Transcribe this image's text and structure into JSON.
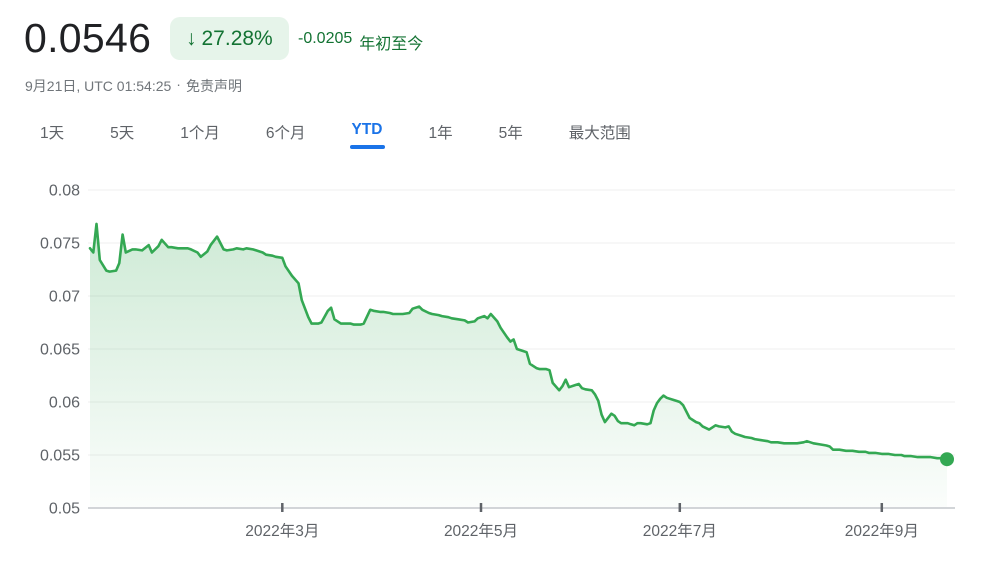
{
  "header": {
    "price": "0.0546",
    "change_badge": {
      "arrow": "↓",
      "percent": "27.28%"
    },
    "change_absolute": "-0.0205",
    "change_period_label": "年初至今",
    "timestamp": "9月21日, UTC 01:54:25",
    "separator": "·",
    "disclaimer": "免责声明"
  },
  "range_tabs": {
    "items": [
      {
        "key": "1d",
        "label": "1天",
        "active": false
      },
      {
        "key": "5d",
        "label": "5天",
        "active": false
      },
      {
        "key": "1m",
        "label": "1个月",
        "active": false
      },
      {
        "key": "6m",
        "label": "6个月",
        "active": false
      },
      {
        "key": "ytd",
        "label": "YTD",
        "active": true
      },
      {
        "key": "1y",
        "label": "1年",
        "active": false
      },
      {
        "key": "5y",
        "label": "5年",
        "active": false
      },
      {
        "key": "max",
        "label": "最大范围",
        "active": false
      }
    ]
  },
  "colors": {
    "line_green": "#34a853",
    "dark_green": "#137333",
    "badge_bg": "#e6f4ea",
    "active_blue": "#1a73e8",
    "grid": "#efefef",
    "axis": "#c4c7cc",
    "tick": "#5f6368",
    "label_gray": "#5f6368"
  },
  "chart_data": {
    "type": "area",
    "x_unit": "day_of_year_2022",
    "x_range": [
      1,
      264
    ],
    "y_range": [
      0.05,
      0.08
    ],
    "yticks": [
      0.05,
      0.055,
      0.06,
      0.065,
      0.07,
      0.075,
      0.08
    ],
    "ytick_labels": [
      "0.05",
      "0.055",
      "0.06",
      "0.065",
      "0.07",
      "0.075",
      "0.08"
    ],
    "xticks": [
      {
        "day": 60,
        "label": "2022年3月"
      },
      {
        "day": 121,
        "label": "2022年5月"
      },
      {
        "day": 182,
        "label": "2022年7月"
      },
      {
        "day": 244,
        "label": "2022年9月"
      }
    ],
    "grid": true,
    "legend": "none",
    "last_point": {
      "day": 264,
      "value": 0.0546
    },
    "points": [
      [
        1,
        0.0745
      ],
      [
        2,
        0.0741
      ],
      [
        3,
        0.0768
      ],
      [
        4,
        0.0734
      ],
      [
        6,
        0.0724
      ],
      [
        7,
        0.0723
      ],
      [
        9,
        0.0724
      ],
      [
        10,
        0.0731
      ],
      [
        11,
        0.0758
      ],
      [
        12,
        0.0741
      ],
      [
        14,
        0.0744
      ],
      [
        15,
        0.0744
      ],
      [
        17,
        0.0743
      ],
      [
        19,
        0.0748
      ],
      [
        20,
        0.0741
      ],
      [
        22,
        0.0747
      ],
      [
        23,
        0.0753
      ],
      [
        25,
        0.0746
      ],
      [
        26,
        0.0746
      ],
      [
        28,
        0.0745
      ],
      [
        29,
        0.0745
      ],
      [
        31,
        0.0745
      ],
      [
        32,
        0.0744
      ],
      [
        34,
        0.0741
      ],
      [
        35,
        0.0737
      ],
      [
        37,
        0.0742
      ],
      [
        38,
        0.0748
      ],
      [
        40,
        0.0756
      ],
      [
        42,
        0.0744
      ],
      [
        43,
        0.0743
      ],
      [
        45,
        0.0744
      ],
      [
        46,
        0.0745
      ],
      [
        48,
        0.0744
      ],
      [
        49,
        0.0745
      ],
      [
        51,
        0.0744
      ],
      [
        52,
        0.0743
      ],
      [
        54,
        0.0741
      ],
      [
        55,
        0.0739
      ],
      [
        57,
        0.0738
      ],
      [
        58,
        0.0737
      ],
      [
        60,
        0.0736
      ],
      [
        61,
        0.0728
      ],
      [
        63,
        0.0719
      ],
      [
        65,
        0.0712
      ],
      [
        66,
        0.0696
      ],
      [
        68,
        0.068
      ],
      [
        69,
        0.0674
      ],
      [
        71,
        0.0674
      ],
      [
        72,
        0.0675
      ],
      [
        74,
        0.0686
      ],
      [
        75,
        0.0689
      ],
      [
        76,
        0.0678
      ],
      [
        78,
        0.0674
      ],
      [
        79,
        0.0674
      ],
      [
        81,
        0.0674
      ],
      [
        82,
        0.0673
      ],
      [
        84,
        0.0673
      ],
      [
        85,
        0.0674
      ],
      [
        87,
        0.0687
      ],
      [
        88,
        0.0686
      ],
      [
        90,
        0.0685
      ],
      [
        91,
        0.0685
      ],
      [
        93,
        0.0684
      ],
      [
        94,
        0.0683
      ],
      [
        96,
        0.0683
      ],
      [
        97,
        0.0683
      ],
      [
        99,
        0.0684
      ],
      [
        100,
        0.0688
      ],
      [
        102,
        0.069
      ],
      [
        103,
        0.0687
      ],
      [
        105,
        0.0684
      ],
      [
        106,
        0.0683
      ],
      [
        108,
        0.0682
      ],
      [
        109,
        0.0681
      ],
      [
        111,
        0.068
      ],
      [
        112,
        0.0679
      ],
      [
        114,
        0.0678
      ],
      [
        116,
        0.0677
      ],
      [
        117,
        0.0675
      ],
      [
        119,
        0.0676
      ],
      [
        120,
        0.0679
      ],
      [
        122,
        0.0681
      ],
      [
        123,
        0.0679
      ],
      [
        124,
        0.0683
      ],
      [
        126,
        0.0676
      ],
      [
        127,
        0.067
      ],
      [
        129,
        0.0661
      ],
      [
        130,
        0.0657
      ],
      [
        131,
        0.0659
      ],
      [
        132,
        0.065
      ],
      [
        134,
        0.0648
      ],
      [
        135,
        0.0647
      ],
      [
        136,
        0.0636
      ],
      [
        138,
        0.0632
      ],
      [
        139,
        0.0631
      ],
      [
        141,
        0.0631
      ],
      [
        142,
        0.063
      ],
      [
        143,
        0.0618
      ],
      [
        145,
        0.0611
      ],
      [
        146,
        0.0615
      ],
      [
        147,
        0.0621
      ],
      [
        148,
        0.0614
      ],
      [
        150,
        0.0616
      ],
      [
        151,
        0.0617
      ],
      [
        152,
        0.0613
      ],
      [
        153,
        0.0612
      ],
      [
        155,
        0.0611
      ],
      [
        156,
        0.0607
      ],
      [
        157,
        0.0601
      ],
      [
        158,
        0.0588
      ],
      [
        159,
        0.0581
      ],
      [
        160,
        0.0585
      ],
      [
        161,
        0.0589
      ],
      [
        162,
        0.0587
      ],
      [
        163,
        0.0582
      ],
      [
        164,
        0.058
      ],
      [
        166,
        0.058
      ],
      [
        167,
        0.0579
      ],
      [
        168,
        0.0578
      ],
      [
        169,
        0.058
      ],
      [
        170,
        0.058
      ],
      [
        172,
        0.0579
      ],
      [
        173,
        0.058
      ],
      [
        174,
        0.0592
      ],
      [
        175,
        0.0599
      ],
      [
        176,
        0.0603
      ],
      [
        177,
        0.0606
      ],
      [
        178,
        0.0604
      ],
      [
        180,
        0.0602
      ],
      [
        181,
        0.0601
      ],
      [
        182,
        0.06
      ],
      [
        183,
        0.0597
      ],
      [
        185,
        0.0585
      ],
      [
        186,
        0.0583
      ],
      [
        187,
        0.0581
      ],
      [
        188,
        0.058
      ],
      [
        189,
        0.0577
      ],
      [
        191,
        0.0574
      ],
      [
        192,
        0.0576
      ],
      [
        193,
        0.0578
      ],
      [
        194,
        0.0577
      ],
      [
        196,
        0.0576
      ],
      [
        197,
        0.0577
      ],
      [
        198,
        0.0572
      ],
      [
        199,
        0.057
      ],
      [
        201,
        0.0568
      ],
      [
        202,
        0.0567
      ],
      [
        204,
        0.0566
      ],
      [
        205,
        0.0565
      ],
      [
        207,
        0.0564
      ],
      [
        209,
        0.0563
      ],
      [
        210,
        0.0562
      ],
      [
        212,
        0.0562
      ],
      [
        214,
        0.0561
      ],
      [
        216,
        0.0561
      ],
      [
        218,
        0.0561
      ],
      [
        220,
        0.0562
      ],
      [
        221,
        0.0563
      ],
      [
        223,
        0.0561
      ],
      [
        225,
        0.056
      ],
      [
        227,
        0.0559
      ],
      [
        228,
        0.0558
      ],
      [
        229,
        0.0555
      ],
      [
        231,
        0.0555
      ],
      [
        233,
        0.0554
      ],
      [
        235,
        0.0554
      ],
      [
        237,
        0.0553
      ],
      [
        239,
        0.0553
      ],
      [
        240,
        0.0552
      ],
      [
        242,
        0.0552
      ],
      [
        244,
        0.0551
      ],
      [
        246,
        0.0551
      ],
      [
        248,
        0.055
      ],
      [
        250,
        0.055
      ],
      [
        251,
        0.0549
      ],
      [
        253,
        0.0549
      ],
      [
        255,
        0.0548
      ],
      [
        257,
        0.0548
      ],
      [
        259,
        0.0548
      ],
      [
        261,
        0.0547
      ],
      [
        262,
        0.0547
      ],
      [
        264,
        0.0546
      ]
    ]
  }
}
